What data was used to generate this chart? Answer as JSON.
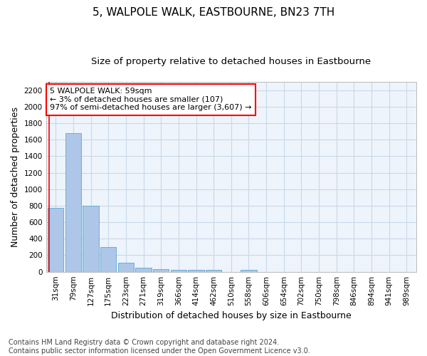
{
  "title": "5, WALPOLE WALK, EASTBOURNE, BN23 7TH",
  "subtitle": "Size of property relative to detached houses in Eastbourne",
  "xlabel": "Distribution of detached houses by size in Eastbourne",
  "ylabel": "Number of detached properties",
  "bar_labels": [
    "31sqm",
    "79sqm",
    "127sqm",
    "175sqm",
    "223sqm",
    "271sqm",
    "319sqm",
    "366sqm",
    "414sqm",
    "462sqm",
    "510sqm",
    "558sqm",
    "606sqm",
    "654sqm",
    "702sqm",
    "750sqm",
    "798sqm",
    "846sqm",
    "894sqm",
    "941sqm",
    "989sqm"
  ],
  "bar_values": [
    770,
    1680,
    800,
    300,
    110,
    45,
    35,
    25,
    20,
    20,
    0,
    20,
    0,
    0,
    0,
    0,
    0,
    0,
    0,
    0,
    0
  ],
  "bar_color": "#aec6e8",
  "bar_edgecolor": "#6aafd6",
  "property_sqm": 59,
  "annotation_text": "5 WALPOLE WALK: 59sqm\n← 3% of detached houses are smaller (107)\n97% of semi-detached houses are larger (3,607) →",
  "annotation_box_color": "white",
  "annotation_box_edgecolor": "red",
  "property_line_color": "red",
  "ylim": [
    0,
    2300
  ],
  "yticks": [
    0,
    200,
    400,
    600,
    800,
    1000,
    1200,
    1400,
    1600,
    1800,
    2000,
    2200
  ],
  "grid_color": "#c8d8e8",
  "background_color": "#eef4fb",
  "footer": "Contains HM Land Registry data © Crown copyright and database right 2024.\nContains public sector information licensed under the Open Government Licence v3.0.",
  "title_fontsize": 11,
  "subtitle_fontsize": 9.5,
  "xlabel_fontsize": 9,
  "ylabel_fontsize": 9,
  "tick_fontsize": 7.5,
  "footer_fontsize": 7
}
